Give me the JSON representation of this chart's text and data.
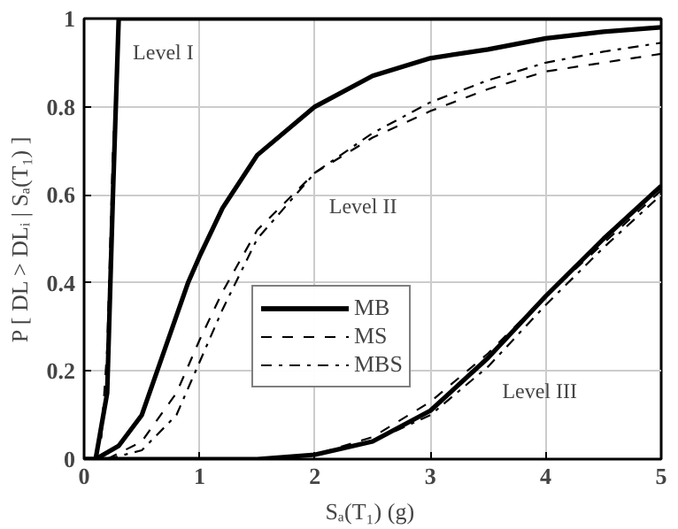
{
  "chart_data": {
    "type": "line",
    "xlabel": "Sₐ(T₁)  (g)",
    "ylabel": "P [ DL > DLᵢ | Sₐ(T₁) ]",
    "xlim": [
      0,
      5
    ],
    "ylim": [
      0,
      1
    ],
    "xticks": [
      0,
      1,
      2,
      3,
      4,
      5
    ],
    "yticks": [
      0,
      0.2,
      0.4,
      0.6,
      0.8,
      1
    ],
    "grid": true,
    "legend": "center",
    "marker": "none",
    "annotations": [
      {
        "text": "Level I",
        "x": 0.3,
        "y": 1
      },
      {
        "text": "Level II",
        "x": 2.0,
        "y": 0.65
      },
      {
        "text": "Level III",
        "x": 3.5,
        "y": 0.23
      }
    ],
    "series": [
      {
        "name": "MB",
        "color": "#000000",
        "line_style": "solid",
        "x": [
          0.1,
          0.3,
          0.5,
          0.7,
          0.9,
          1.0,
          1.2,
          1.5,
          2.0,
          2.5,
          3.0,
          3.5,
          4.0,
          4.5,
          5.0
        ],
        "values": [
          0,
          0.03,
          0.1,
          0.25,
          0.4,
          0.46,
          0.57,
          0.69,
          0.8,
          0.87,
          0.91,
          0.93,
          0.955,
          0.97,
          0.98
        ]
      },
      {
        "name": "MS",
        "color": "#000000",
        "line_style": "dashed",
        "x": [
          0.2,
          0.5,
          0.8,
          1.0,
          1.2,
          1.5,
          2.0,
          2.5,
          3.0,
          3.5,
          4.0,
          4.5,
          5.0
        ],
        "values": [
          0,
          0.04,
          0.15,
          0.27,
          0.38,
          0.52,
          0.65,
          0.73,
          0.79,
          0.84,
          0.88,
          0.9,
          0.92
        ]
      },
      {
        "name": "MBS",
        "color": "#000000",
        "line_style": "dashdot",
        "x": [
          0.2,
          0.5,
          0.8,
          1.0,
          1.2,
          1.5,
          2.0,
          2.5,
          3.0,
          3.5,
          4.0,
          4.5,
          5.0
        ],
        "values": [
          0,
          0.02,
          0.1,
          0.22,
          0.34,
          0.5,
          0.65,
          0.74,
          0.81,
          0.86,
          0.9,
          0.925,
          0.945
        ]
      },
      {
        "color": "#000000",
        "line_style": "solid",
        "x": [
          0,
          0.1,
          0.2,
          0.25,
          0.3,
          5.0
        ],
        "values": [
          0,
          0,
          0.15,
          0.6,
          1,
          1
        ]
      },
      {
        "color": "#000000",
        "line_style": "dashed",
        "x": [
          0.1,
          0.15,
          0.2,
          0.25,
          0.3
        ],
        "values": [
          0,
          0.05,
          0.25,
          0.7,
          1
        ]
      },
      {
        "color": "#000000",
        "line_style": "solid",
        "x": [
          0,
          1.5,
          2.0,
          2.5,
          3.0,
          3.5,
          4.0,
          4.5,
          5.0
        ],
        "values": [
          0,
          0,
          0.01,
          0.04,
          0.11,
          0.23,
          0.37,
          0.5,
          0.62
        ]
      },
      {
        "color": "#000000",
        "line_style": "dashed",
        "x": [
          1.5,
          2.0,
          2.5,
          3.0,
          3.5,
          4.0,
          4.5,
          5.0
        ],
        "values": [
          0,
          0.01,
          0.05,
          0.13,
          0.24,
          0.37,
          0.49,
          0.61
        ]
      },
      {
        "color": "#000000",
        "line_style": "dashdot",
        "x": [
          1.5,
          2.0,
          2.5,
          3.0,
          3.5,
          4.0,
          4.5,
          5.0
        ],
        "values": [
          0,
          0.01,
          0.04,
          0.1,
          0.21,
          0.35,
          0.48,
          0.6
        ]
      }
    ]
  }
}
